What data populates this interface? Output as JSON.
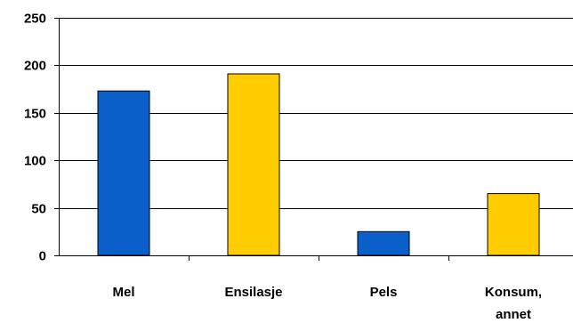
{
  "chart_data": {
    "type": "bar",
    "title": "",
    "xlabel": "",
    "ylabel": "",
    "categories": [
      "Mel",
      "Ensilasje",
      "Pels",
      "Konsum,\nannet"
    ],
    "values": [
      173,
      191,
      25,
      65
    ],
    "bar_colors": [
      "#0A5FCB",
      "#FFCC00",
      "#0A5FCB",
      "#FFCC00"
    ],
    "ylim": [
      0,
      250
    ],
    "yticks": [
      "0",
      "50",
      "100",
      "150",
      "200",
      "250"
    ],
    "grid": true,
    "legend": "none"
  }
}
